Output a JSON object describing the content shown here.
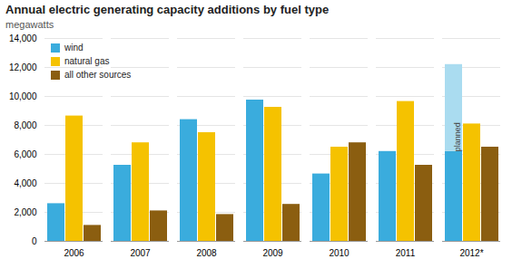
{
  "chart_data": {
    "type": "bar",
    "title": "Annual electric generating capacity additions by fuel type",
    "subtitle": "megawatts",
    "categories": [
      "2006",
      "2007",
      "2008",
      "2009",
      "2010",
      "2011",
      "2012*"
    ],
    "series": [
      {
        "name": "wind",
        "color": "#3aacdd",
        "values": [
          2600,
          5250,
          8400,
          9750,
          4650,
          6200,
          6200
        ],
        "planned": {
          "name": "planned",
          "color": "#aadcf0",
          "values": [
            null,
            null,
            null,
            null,
            null,
            null,
            12200
          ]
        }
      },
      {
        "name": "natural gas",
        "color": "#f5c200",
        "values": [
          8650,
          6800,
          7500,
          9250,
          6500,
          9650,
          8100
        ]
      },
      {
        "name": "all other sources",
        "color": "#8B5E10",
        "values": [
          1100,
          2100,
          1850,
          2550,
          6800,
          5250,
          6500
        ]
      }
    ],
    "ylim": [
      0,
      14000
    ],
    "yticks": [
      0,
      {
        "value": 2000,
        "label": "2,000"
      },
      {
        "value": 4000,
        "label": "4,000"
      },
      {
        "value": 6000,
        "label": "6,000"
      },
      {
        "value": 8000,
        "label": "8,000"
      },
      {
        "value": 10000,
        "label": "10,000"
      },
      {
        "value": 12000,
        "label": "12,000"
      },
      {
        "value": 14000,
        "label": "14,000"
      }
    ],
    "grid": true,
    "legend": "upper left"
  }
}
